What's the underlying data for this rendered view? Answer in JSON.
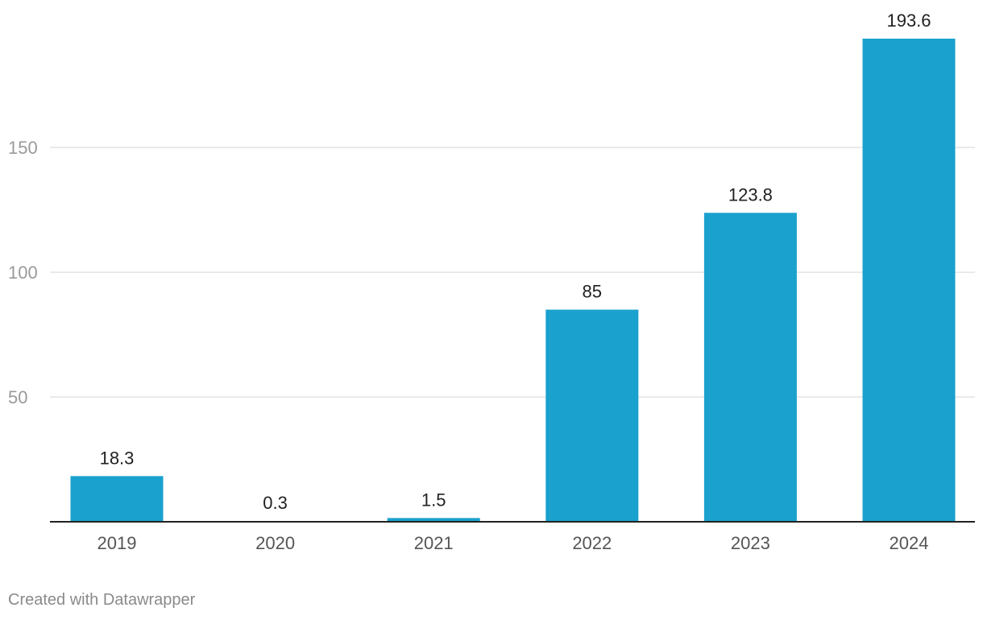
{
  "chart_data": {
    "type": "bar",
    "title": "",
    "xlabel": "",
    "ylabel": "",
    "categories": [
      "2019",
      "2020",
      "2021",
      "2022",
      "2023",
      "2024"
    ],
    "values": [
      18.3,
      0.3,
      1.5,
      85,
      123.8,
      193.6
    ],
    "value_labels": [
      "18.3",
      "0.3",
      "1.5",
      "85",
      "123.8",
      "193.6"
    ],
    "ylim": [
      0,
      193.6
    ],
    "yticks": [
      50,
      100,
      150
    ],
    "ytick_labels": [
      "50",
      "100",
      "150"
    ],
    "grid": true,
    "legend": "none",
    "colors": {
      "bar": "#1ba1cd",
      "grid": "#e3e3e3",
      "axis": "#222222",
      "tick_label": "#9a9a9a",
      "category_label": "#555555",
      "value_label": "#222222"
    }
  },
  "footer": {
    "credit": "Created with Datawrapper"
  }
}
